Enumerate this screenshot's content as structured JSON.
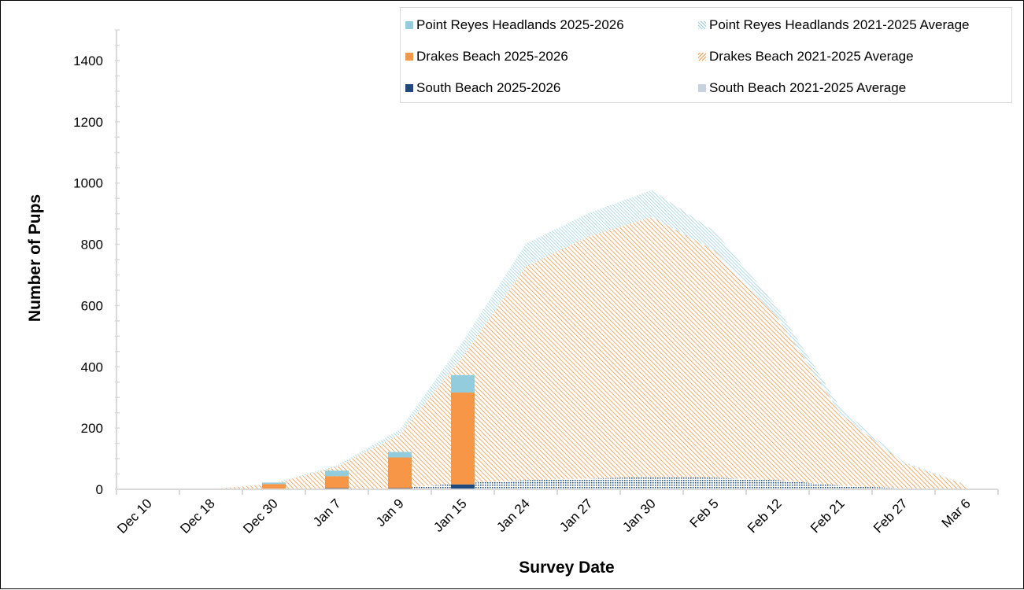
{
  "chart_data": {
    "type": "bar+area",
    "title": "",
    "xlabel": "Survey Date",
    "ylabel": "Number of  Pups",
    "ylim": [
      0,
      1500
    ],
    "yticks": [
      0,
      200,
      400,
      600,
      800,
      1000,
      1200,
      1400
    ],
    "y_minor_tick_step": 50,
    "grid": false,
    "legend_position": "top-right",
    "categories": [
      "Dec 10",
      "Dec 18",
      "Dec 30",
      "Jan 7",
      "Jan 9",
      "Jan 15",
      "Jan 24",
      "Jan 27",
      "Jan 30",
      "Feb 5",
      "Feb 12",
      "Feb 21",
      "Feb 27",
      "Mar 6"
    ],
    "bar_series": [
      {
        "name": "South Beach 2025-2026",
        "color": "#1f497d",
        "values": [
          0,
          0,
          0,
          4,
          4,
          16,
          null,
          null,
          null,
          null,
          null,
          null,
          null,
          null
        ]
      },
      {
        "name": "Drakes Beach 2025-2026",
        "color": "#f79646",
        "values": [
          0,
          0,
          17,
          39,
          100,
          300,
          null,
          null,
          null,
          null,
          null,
          null,
          null,
          null
        ]
      },
      {
        "name": "Point Reyes Headlands 2025-2026",
        "color": "#93cddd",
        "values": [
          0,
          0,
          5,
          18,
          18,
          57,
          null,
          null,
          null,
          null,
          null,
          null,
          null,
          null
        ]
      }
    ],
    "area_series": [
      {
        "name": "South Beach 2021-2025 Average",
        "color": "#1f497d",
        "pattern": "dots",
        "values": [
          0,
          0,
          0,
          1,
          4,
          20,
          30,
          35,
          40,
          38,
          30,
          12,
          3,
          0
        ]
      },
      {
        "name": "Drakes Beach 2021-2025 Average",
        "color": "#f79646",
        "pattern": "diagonal",
        "values": [
          0,
          1,
          18,
          72,
          174,
          412,
          697,
          790,
          849,
          741,
          530,
          235,
          82,
          14
        ]
      },
      {
        "name": "Point Reyes Headlands 2021-2025 Average",
        "color": "#93cddd",
        "pattern": "diagonal-dense",
        "values": [
          0,
          0,
          2,
          5,
          17,
          51,
          75,
          77,
          88,
          64,
          34,
          18,
          5,
          1
        ]
      }
    ],
    "stacked": true
  },
  "legend": {
    "items": [
      {
        "label": "Point Reyes Headlands 2025-2026",
        "icon": "solid-square",
        "color": "#93cddd"
      },
      {
        "label": "Point Reyes Headlands 2021-2025 Average",
        "icon": "hatched-square",
        "color": "#93cddd"
      },
      {
        "label": "Drakes Beach 2025-2026",
        "icon": "solid-square",
        "color": "#f79646"
      },
      {
        "label": "Drakes Beach 2021-2025 Average",
        "icon": "hatched-square",
        "color": "#f79646"
      },
      {
        "label": "South Beach 2025-2026",
        "icon": "solid-square",
        "color": "#1f497d"
      },
      {
        "label": "South Beach 2021-2025 Average",
        "icon": "dotted-square",
        "color": "#1f497d"
      }
    ]
  },
  "colors": {
    "axis": "#d9d9d9",
    "text": "#000000",
    "frame": "#000000"
  }
}
